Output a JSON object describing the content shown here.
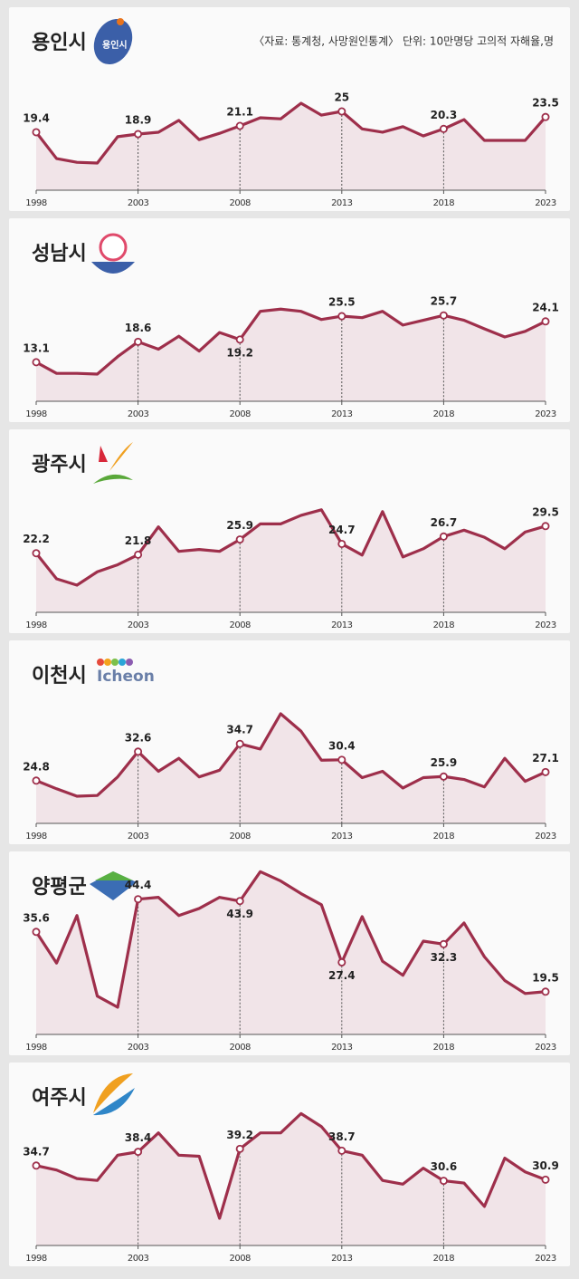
{
  "source": "〈자료: 통계청, 사망원인통계〉 단위: 10만명당 고의적 자해율,명",
  "chart_data": [
    {
      "type": "line",
      "title": "용인시",
      "logo_text": "용인시",
      "color": "#9e2f4b",
      "x": [
        1998,
        1999,
        2000,
        2001,
        2002,
        2003,
        2004,
        2005,
        2006,
        2007,
        2008,
        2009,
        2010,
        2011,
        2012,
        2013,
        2014,
        2015,
        2016,
        2017,
        2018,
        2019,
        2020,
        2021,
        2022,
        2023
      ],
      "values": [
        19.4,
        12.3,
        11.3,
        11.1,
        18.2,
        18.9,
        19.4,
        22.6,
        17.4,
        19.1,
        21.1,
        23.3,
        23.0,
        27.2,
        24.0,
        25.0,
        20.3,
        19.4,
        20.9,
        18.4,
        20.3,
        22.8,
        17.2,
        17.2,
        17.2,
        23.5
      ],
      "xticks": [
        1998,
        2003,
        2008,
        2013,
        2018,
        2023
      ]
    },
    {
      "type": "line",
      "title": "성남시",
      "color": "#9e2f4b",
      "x": [
        1998,
        1999,
        2000,
        2001,
        2002,
        2003,
        2004,
        2005,
        2006,
        2007,
        2008,
        2009,
        2010,
        2011,
        2012,
        2013,
        2014,
        2015,
        2016,
        2017,
        2018,
        2019,
        2020,
        2021,
        2022,
        2023
      ],
      "values": [
        13.1,
        10.1,
        10.1,
        9.9,
        14.6,
        18.6,
        16.6,
        20.1,
        16.1,
        21.1,
        19.2,
        26.8,
        27.4,
        26.8,
        24.6,
        25.5,
        25.1,
        26.8,
        23.1,
        24.4,
        25.7,
        24.4,
        22.1,
        19.9,
        21.4,
        24.1
      ],
      "xticks": [
        1998,
        2003,
        2008,
        2013,
        2018,
        2023
      ]
    },
    {
      "type": "line",
      "title": "광주시",
      "color": "#9e2f4b",
      "x": [
        1998,
        1999,
        2000,
        2001,
        2002,
        2003,
        2004,
        2005,
        2006,
        2007,
        2008,
        2009,
        2010,
        2011,
        2012,
        2013,
        2014,
        2015,
        2016,
        2017,
        2018,
        2019,
        2020,
        2021,
        2022,
        2023
      ],
      "values": [
        22.2,
        15.3,
        13.6,
        17.2,
        19.1,
        21.8,
        29.3,
        22.7,
        23.2,
        22.7,
        25.9,
        30.1,
        30.1,
        32.4,
        33.9,
        24.7,
        21.7,
        33.4,
        21.2,
        23.4,
        26.7,
        28.4,
        26.5,
        23.4,
        27.9,
        29.5
      ],
      "xticks": [
        1998,
        2003,
        2008,
        2013,
        2018,
        2023
      ]
    },
    {
      "type": "line",
      "title": "이천시",
      "logo_text": "Icheon",
      "color": "#9e2f4b",
      "x": [
        1998,
        1999,
        2000,
        2001,
        2002,
        2003,
        2004,
        2005,
        2006,
        2007,
        2008,
        2009,
        2010,
        2011,
        2012,
        2013,
        2014,
        2015,
        2016,
        2017,
        2018,
        2019,
        2020,
        2021,
        2022,
        2023
      ],
      "values": [
        24.8,
        22.6,
        20.6,
        20.8,
        25.8,
        32.6,
        27.3,
        30.8,
        25.8,
        27.6,
        34.7,
        33.3,
        42.8,
        38.1,
        30.3,
        30.4,
        25.6,
        27.3,
        22.8,
        25.6,
        25.9,
        25.1,
        23.1,
        30.8,
        24.6,
        27.1
      ],
      "xticks": [
        1998,
        2003,
        2008,
        2013,
        2018,
        2023
      ]
    },
    {
      "type": "line",
      "title": "양평군",
      "color": "#9e2f4b",
      "x": [
        1998,
        1999,
        2000,
        2001,
        2002,
        2003,
        2004,
        2005,
        2006,
        2007,
        2008,
        2009,
        2010,
        2011,
        2012,
        2013,
        2014,
        2015,
        2016,
        2017,
        2018,
        2019,
        2020,
        2021,
        2022,
        2023
      ],
      "values": [
        35.6,
        27.2,
        40.0,
        18.3,
        15.3,
        44.4,
        44.9,
        40.0,
        41.9,
        44.9,
        43.9,
        51.8,
        49.3,
        45.9,
        42.9,
        27.4,
        39.7,
        27.7,
        23.9,
        33.1,
        32.3,
        38.0,
        28.9,
        22.5,
        19.0,
        19.5
      ],
      "xticks": [
        1998,
        2003,
        2008,
        2013,
        2018,
        2023
      ]
    },
    {
      "type": "line",
      "title": "여주시",
      "color": "#9e2f4b",
      "x": [
        1998,
        1999,
        2000,
        2001,
        2002,
        2003,
        2004,
        2005,
        2006,
        2007,
        2008,
        2009,
        2010,
        2011,
        2012,
        2013,
        2014,
        2015,
        2016,
        2017,
        2018,
        2019,
        2020,
        2021,
        2022,
        2023
      ],
      "values": [
        34.7,
        33.5,
        31.2,
        30.7,
        37.5,
        38.4,
        43.5,
        37.5,
        37.2,
        20.5,
        39.2,
        43.5,
        43.5,
        48.7,
        45.2,
        38.7,
        37.5,
        30.7,
        29.7,
        34.0,
        30.6,
        30.0,
        23.7,
        36.7,
        33.0,
        30.9
      ],
      "xticks": [
        1998,
        2003,
        2008,
        2013,
        2018,
        2023
      ]
    }
  ]
}
